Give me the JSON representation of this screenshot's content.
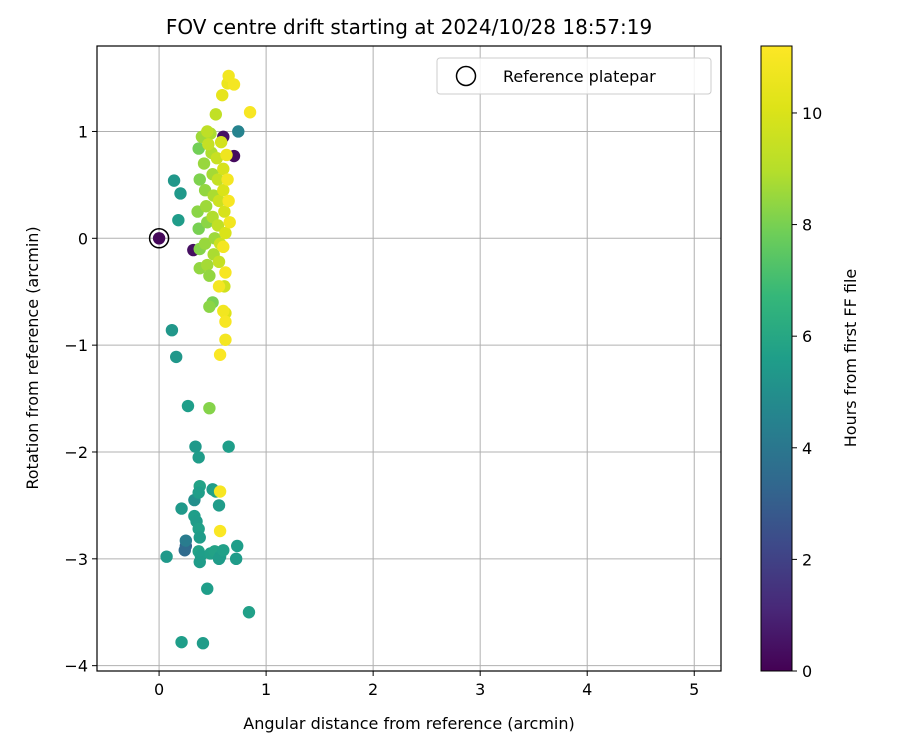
{
  "chart_data": {
    "type": "scatter",
    "title": "FOV centre drift starting at 2024/10/28 18:57:19",
    "xlabel": "Angular distance from reference (arcmin)",
    "ylabel": "Rotation from reference (arcmin)",
    "xlim": [
      -0.58,
      5.25
    ],
    "ylim": [
      -4.05,
      1.8
    ],
    "xticks": [
      "0",
      "1",
      "2",
      "3",
      "4",
      "5"
    ],
    "xtick_values": [
      0,
      1,
      2,
      3,
      4,
      5
    ],
    "yticks": [
      "−4",
      "−3",
      "−2",
      "−1",
      "0",
      "1"
    ],
    "ytick_values": [
      -4,
      -3,
      -2,
      -1,
      0,
      1
    ],
    "grid": true,
    "legend": {
      "label": "Reference platepar",
      "placement": "top-right"
    },
    "reference_point": {
      "x": 0,
      "y": 0
    },
    "colorbar": {
      "label": "Hours from first FF file",
      "colormap": "viridis",
      "range": [
        0,
        11.2
      ],
      "ticks": [
        "0",
        "2",
        "4",
        "6",
        "8",
        "10"
      ],
      "tick_values": [
        0,
        2,
        4,
        6,
        8,
        10
      ]
    },
    "points": [
      {
        "x": 0.0,
        "y": 0.0,
        "c": 0.2
      },
      {
        "x": 0.32,
        "y": -0.11,
        "c": 0.4
      },
      {
        "x": 0.7,
        "y": 0.77,
        "c": 0.3
      },
      {
        "x": 0.6,
        "y": 0.95,
        "c": 0.5
      },
      {
        "x": 0.74,
        "y": 1.0,
        "c": 4.5
      },
      {
        "x": 0.25,
        "y": -2.88,
        "c": 3.2
      },
      {
        "x": 0.24,
        "y": -2.92,
        "c": 3.5
      },
      {
        "x": 0.25,
        "y": -2.83,
        "c": 4.2
      },
      {
        "x": 0.33,
        "y": -2.45,
        "c": 5.0
      },
      {
        "x": 0.14,
        "y": 0.54,
        "c": 5.3
      },
      {
        "x": 0.2,
        "y": 0.42,
        "c": 5.4
      },
      {
        "x": 0.18,
        "y": 0.17,
        "c": 5.5
      },
      {
        "x": 0.12,
        "y": -0.86,
        "c": 5.3
      },
      {
        "x": 0.16,
        "y": -1.11,
        "c": 5.3
      },
      {
        "x": 0.27,
        "y": -1.57,
        "c": 5.6
      },
      {
        "x": 0.34,
        "y": -1.95,
        "c": 5.4
      },
      {
        "x": 0.37,
        "y": -2.05,
        "c": 5.5
      },
      {
        "x": 0.65,
        "y": -1.95,
        "c": 5.6
      },
      {
        "x": 0.38,
        "y": -2.32,
        "c": 5.8
      },
      {
        "x": 0.37,
        "y": -2.38,
        "c": 5.6
      },
      {
        "x": 0.5,
        "y": -2.35,
        "c": 5.5
      },
      {
        "x": 0.53,
        "y": -2.37,
        "c": 5.8
      },
      {
        "x": 0.56,
        "y": -2.5,
        "c": 5.5
      },
      {
        "x": 0.21,
        "y": -2.53,
        "c": 5.4
      },
      {
        "x": 0.33,
        "y": -2.6,
        "c": 5.6
      },
      {
        "x": 0.35,
        "y": -2.65,
        "c": 5.5
      },
      {
        "x": 0.37,
        "y": -2.72,
        "c": 5.7
      },
      {
        "x": 0.38,
        "y": -2.8,
        "c": 5.5
      },
      {
        "x": 0.07,
        "y": -2.98,
        "c": 5.4
      },
      {
        "x": 0.37,
        "y": -2.93,
        "c": 5.8
      },
      {
        "x": 0.39,
        "y": -2.97,
        "c": 5.6
      },
      {
        "x": 0.38,
        "y": -3.03,
        "c": 5.5
      },
      {
        "x": 0.48,
        "y": -2.95,
        "c": 5.7
      },
      {
        "x": 0.52,
        "y": -2.93,
        "c": 5.8
      },
      {
        "x": 0.57,
        "y": -2.98,
        "c": 5.6
      },
      {
        "x": 0.56,
        "y": -3.0,
        "c": 5.5
      },
      {
        "x": 0.6,
        "y": -2.92,
        "c": 5.7
      },
      {
        "x": 0.73,
        "y": -2.88,
        "c": 5.6
      },
      {
        "x": 0.72,
        "y": -3.0,
        "c": 5.5
      },
      {
        "x": 0.45,
        "y": -3.28,
        "c": 5.6
      },
      {
        "x": 0.84,
        "y": -3.5,
        "c": 5.7
      },
      {
        "x": 0.21,
        "y": -3.78,
        "c": 5.6
      },
      {
        "x": 0.41,
        "y": -3.79,
        "c": 5.5
      },
      {
        "x": 0.47,
        "y": -1.59,
        "c": 8.2
      },
      {
        "x": 0.5,
        "y": -0.6,
        "c": 8.0
      },
      {
        "x": 0.47,
        "y": -0.64,
        "c": 8.3
      },
      {
        "x": 0.37,
        "y": 0.84,
        "c": 7.9
      },
      {
        "x": 0.38,
        "y": 0.55,
        "c": 8.1
      },
      {
        "x": 0.36,
        "y": 0.25,
        "c": 8.3
      },
      {
        "x": 0.37,
        "y": 0.09,
        "c": 8.0
      },
      {
        "x": 0.38,
        "y": -0.1,
        "c": 8.2
      },
      {
        "x": 0.38,
        "y": -0.28,
        "c": 8.4
      },
      {
        "x": 0.4,
        "y": 0.95,
        "c": 8.6
      },
      {
        "x": 0.42,
        "y": 0.7,
        "c": 8.5
      },
      {
        "x": 0.43,
        "y": 0.45,
        "c": 8.4
      },
      {
        "x": 0.44,
        "y": 0.3,
        "c": 8.6
      },
      {
        "x": 0.45,
        "y": 0.15,
        "c": 8.3
      },
      {
        "x": 0.43,
        "y": -0.05,
        "c": 8.5
      },
      {
        "x": 0.45,
        "y": -0.25,
        "c": 8.7
      },
      {
        "x": 0.47,
        "y": -0.35,
        "c": 8.4
      },
      {
        "x": 0.48,
        "y": 0.98,
        "c": 8.8
      },
      {
        "x": 0.49,
        "y": 0.8,
        "c": 8.9
      },
      {
        "x": 0.5,
        "y": 0.6,
        "c": 8.7
      },
      {
        "x": 0.51,
        "y": 0.4,
        "c": 8.8
      },
      {
        "x": 0.5,
        "y": 0.2,
        "c": 8.9
      },
      {
        "x": 0.52,
        "y": 0.0,
        "c": 8.6
      },
      {
        "x": 0.51,
        "y": -0.15,
        "c": 8.8
      },
      {
        "x": 0.53,
        "y": 1.16,
        "c": 9.3
      },
      {
        "x": 0.45,
        "y": 1.0,
        "c": 9.2
      },
      {
        "x": 0.46,
        "y": 0.88,
        "c": 9.4
      },
      {
        "x": 0.54,
        "y": 0.75,
        "c": 9.5
      },
      {
        "x": 0.55,
        "y": 0.55,
        "c": 9.4
      },
      {
        "x": 0.56,
        "y": 0.35,
        "c": 9.6
      },
      {
        "x": 0.55,
        "y": 0.12,
        "c": 9.3
      },
      {
        "x": 0.57,
        "y": -0.05,
        "c": 9.6
      },
      {
        "x": 0.56,
        "y": -0.22,
        "c": 9.4
      },
      {
        "x": 0.58,
        "y": 0.9,
        "c": 9.8
      },
      {
        "x": 0.6,
        "y": 0.65,
        "c": 9.9
      },
      {
        "x": 0.6,
        "y": 0.45,
        "c": 10.0
      },
      {
        "x": 0.61,
        "y": 0.25,
        "c": 9.9
      },
      {
        "x": 0.62,
        "y": 0.05,
        "c": 10.0
      },
      {
        "x": 0.61,
        "y": -0.45,
        "c": 9.7
      },
      {
        "x": 0.62,
        "y": -0.7,
        "c": 10.1
      },
      {
        "x": 0.59,
        "y": 1.34,
        "c": 10.4
      },
      {
        "x": 0.64,
        "y": 1.45,
        "c": 10.6
      },
      {
        "x": 0.65,
        "y": 1.52,
        "c": 10.8
      },
      {
        "x": 0.7,
        "y": 1.44,
        "c": 10.9
      },
      {
        "x": 0.85,
        "y": 1.18,
        "c": 11.0
      },
      {
        "x": 0.63,
        "y": 0.78,
        "c": 10.7
      },
      {
        "x": 0.64,
        "y": 0.55,
        "c": 10.9
      },
      {
        "x": 0.65,
        "y": 0.35,
        "c": 11.0
      },
      {
        "x": 0.66,
        "y": 0.15,
        "c": 10.8
      },
      {
        "x": 0.6,
        "y": -0.08,
        "c": 10.9
      },
      {
        "x": 0.62,
        "y": -0.32,
        "c": 11.0
      },
      {
        "x": 0.56,
        "y": -0.45,
        "c": 10.9
      },
      {
        "x": 0.6,
        "y": -0.68,
        "c": 10.8
      },
      {
        "x": 0.62,
        "y": -0.78,
        "c": 11.0
      },
      {
        "x": 0.62,
        "y": -0.95,
        "c": 10.9
      },
      {
        "x": 0.57,
        "y": -1.09,
        "c": 11.1
      },
      {
        "x": 0.57,
        "y": -2.37,
        "c": 11.0
      },
      {
        "x": 0.57,
        "y": -2.74,
        "c": 11.1
      }
    ]
  }
}
